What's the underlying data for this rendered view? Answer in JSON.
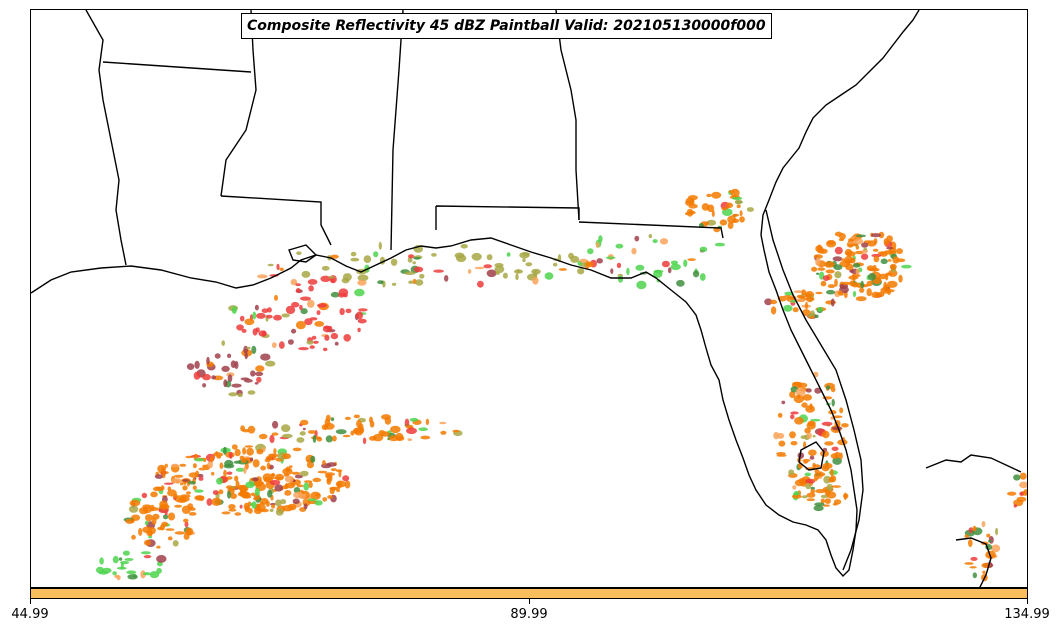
{
  "title": "Composite Reflectivity 45 dBZ Paintball Valid: 202105130000f000",
  "colorbar": {
    "color": "#fbbe5f",
    "ticks": [
      "44.99",
      "89.99",
      "134.99"
    ]
  },
  "colors": {
    "orange": "#f57a00",
    "light_orange": "#f9a35a",
    "red": "#ee3b3b",
    "brownred": "#a0404a",
    "green": "#4cd34c",
    "olive": "#a8a845",
    "dark_green": "#3f8f3f"
  }
}
